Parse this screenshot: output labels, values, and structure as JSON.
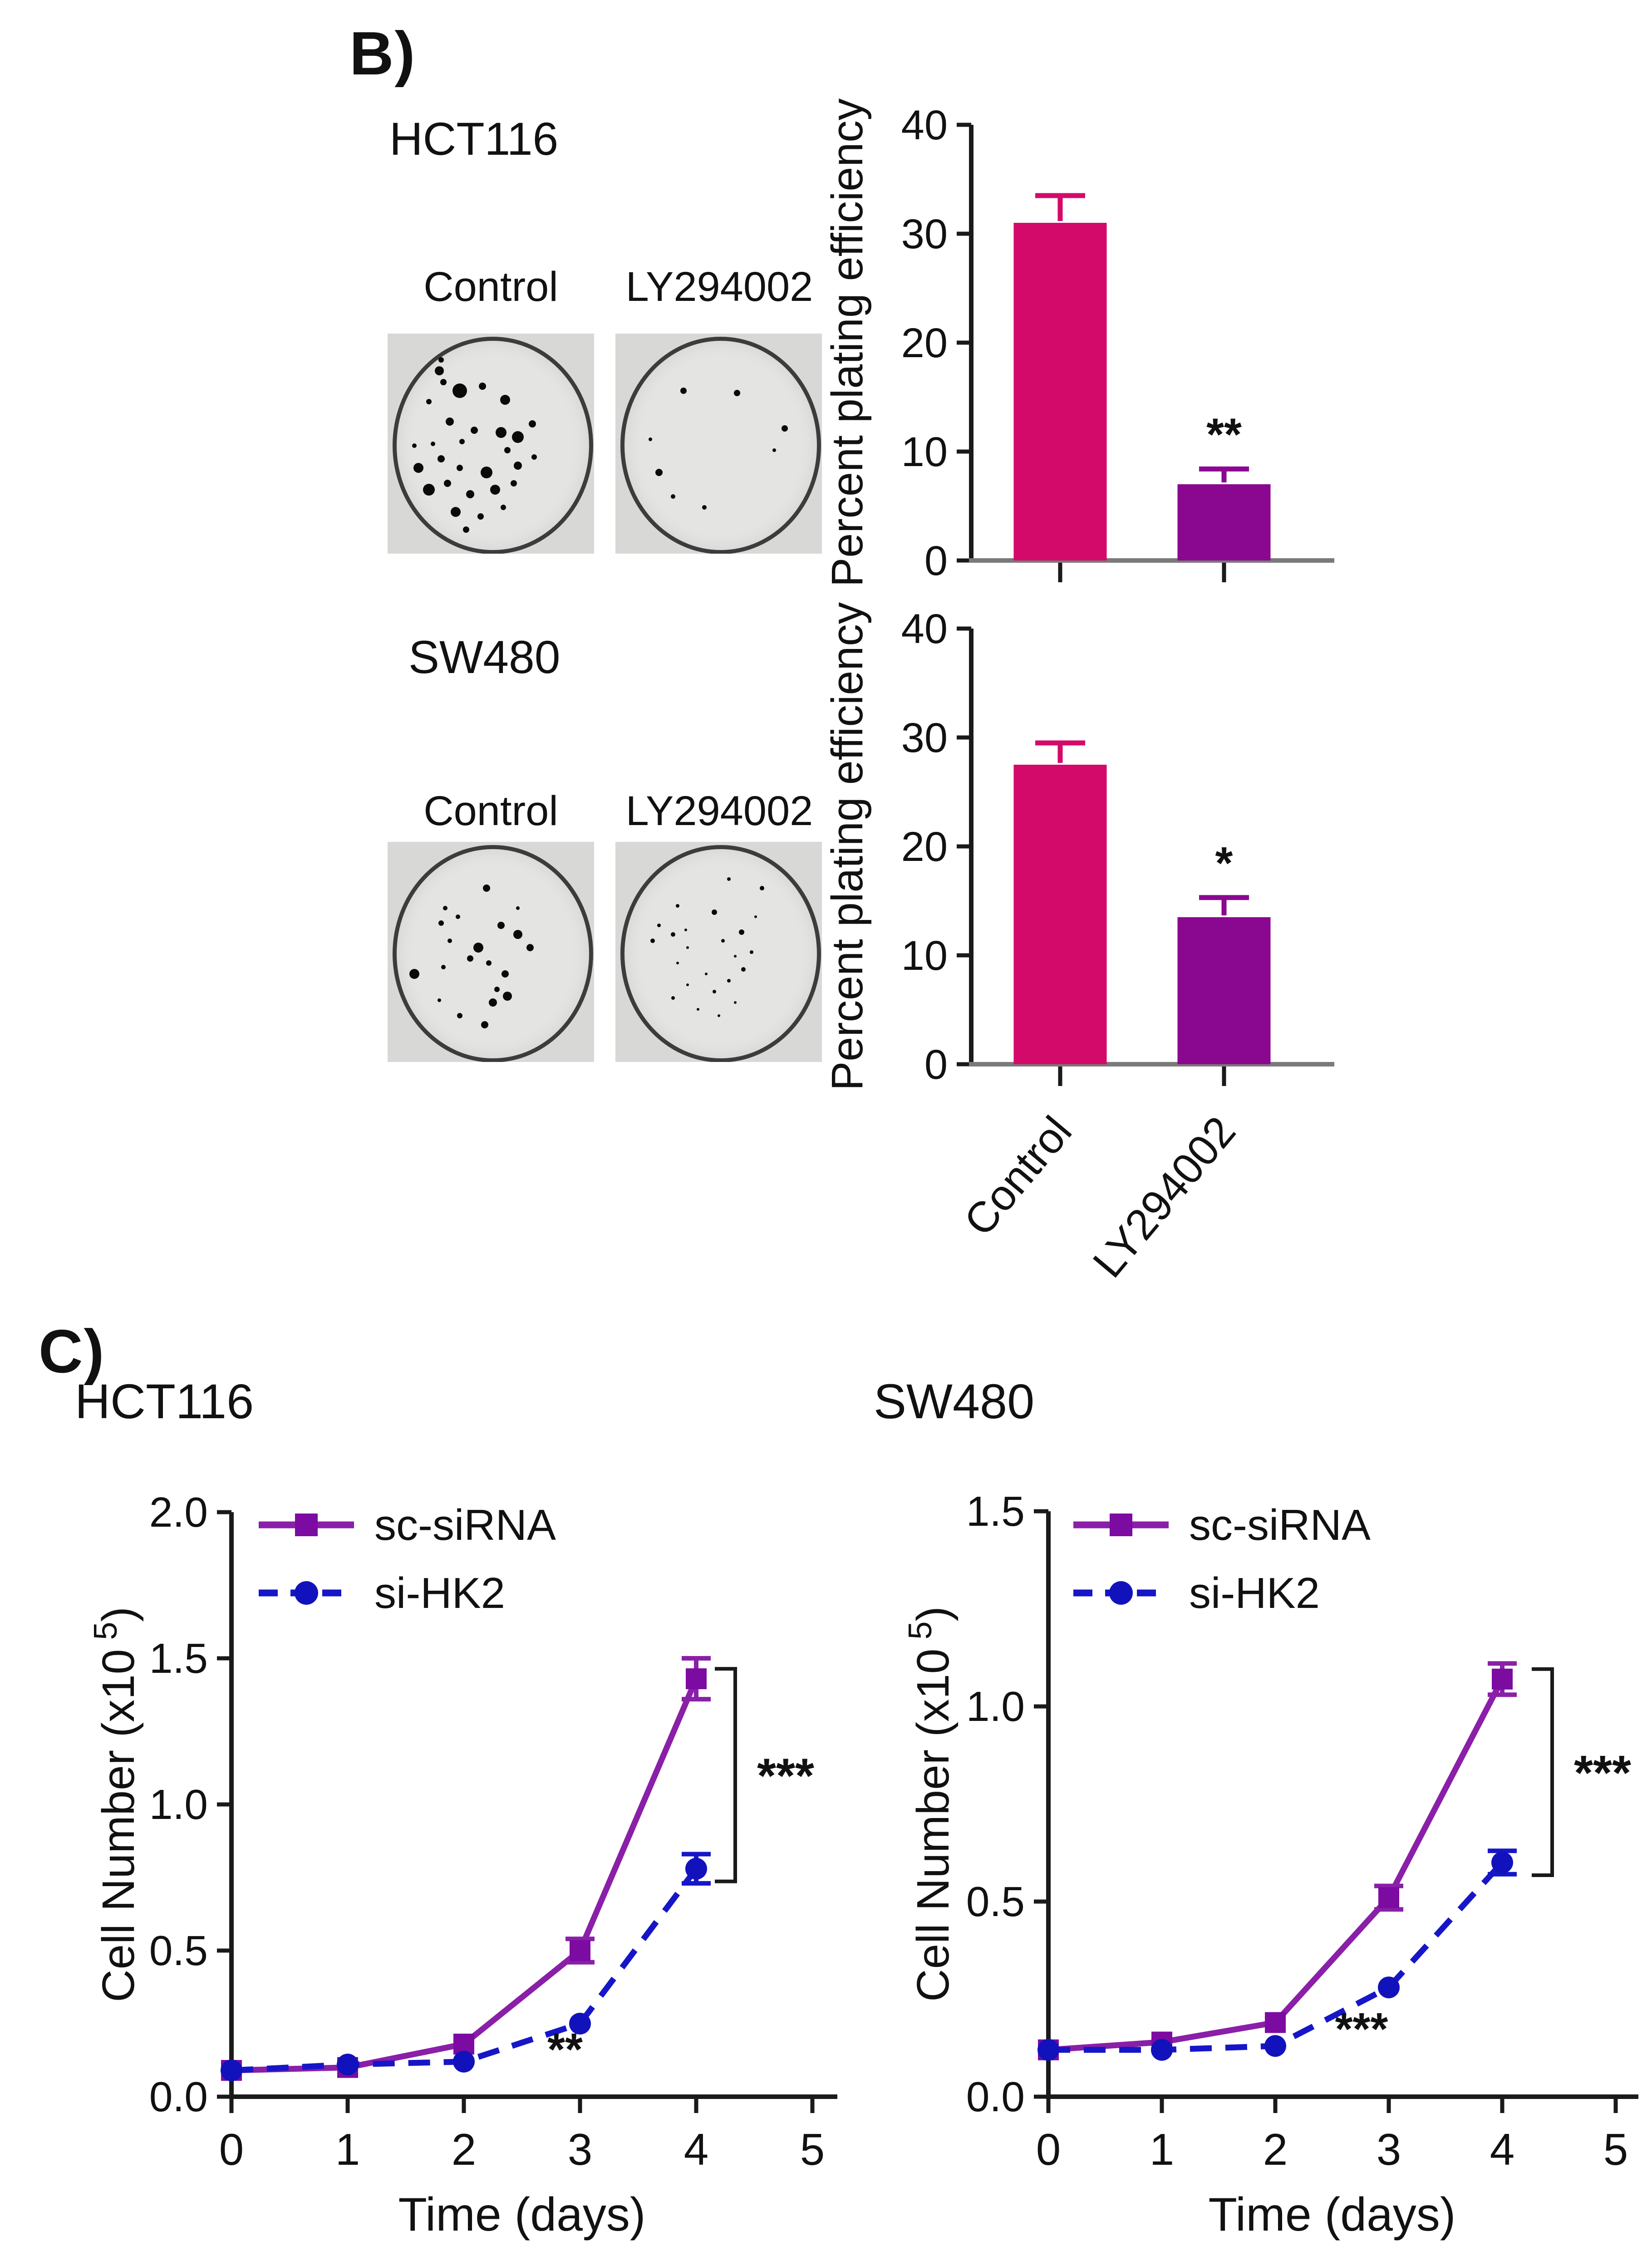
{
  "panel_b": {
    "label": "B)",
    "sections": [
      {
        "cell_line": "HCT116",
        "dish_labels": [
          "Control",
          "LY294002"
        ]
      },
      {
        "cell_line": "SW480",
        "dish_labels": [
          "Control",
          "LY294002"
        ]
      }
    ]
  },
  "panel_c": {
    "label": "C)",
    "titles": [
      "HCT116",
      "SW480"
    ]
  },
  "colonies": {
    "hct116_control": [
      [
        25,
        17,
        10
      ],
      [
        27,
        22,
        7
      ],
      [
        35,
        26,
        16
      ],
      [
        20,
        31,
        6
      ],
      [
        46,
        24,
        8
      ],
      [
        57,
        30,
        11
      ],
      [
        30,
        40,
        9
      ],
      [
        42,
        44,
        8
      ],
      [
        36,
        49,
        6
      ],
      [
        55,
        45,
        12
      ],
      [
        63,
        47,
        13
      ],
      [
        58,
        53,
        7
      ],
      [
        22,
        50,
        5
      ],
      [
        26,
        57,
        8
      ],
      [
        15,
        61,
        11
      ],
      [
        35,
        61,
        7
      ],
      [
        48,
        63,
        13
      ],
      [
        63,
        60,
        9
      ],
      [
        71,
        56,
        6
      ],
      [
        20,
        71,
        13
      ],
      [
        29,
        68,
        8
      ],
      [
        40,
        73,
        9
      ],
      [
        52,
        71,
        11
      ],
      [
        61,
        68,
        7
      ],
      [
        33,
        81,
        11
      ],
      [
        45,
        83,
        7
      ],
      [
        56,
        79,
        6
      ],
      [
        38,
        89,
        7
      ],
      [
        70,
        41,
        8
      ],
      [
        13,
        51,
        5
      ],
      [
        26,
        12,
        6
      ]
    ],
    "hct116_ly294002": [
      [
        33,
        26,
        7
      ],
      [
        59,
        27,
        7
      ],
      [
        82,
        43,
        7
      ],
      [
        17,
        48,
        4
      ],
      [
        21,
        63,
        8
      ],
      [
        28,
        74,
        5
      ],
      [
        43,
        79,
        5
      ],
      [
        77,
        53,
        4
      ]
    ],
    "sw480_control": [
      [
        48,
        21,
        8
      ],
      [
        28,
        30,
        5
      ],
      [
        26,
        37,
        6
      ],
      [
        34,
        34,
        5
      ],
      [
        55,
        38,
        8
      ],
      [
        63,
        42,
        10
      ],
      [
        30,
        45,
        5
      ],
      [
        44,
        48,
        11
      ],
      [
        40,
        53,
        7
      ],
      [
        49,
        55,
        6
      ],
      [
        69,
        48,
        8
      ],
      [
        13,
        60,
        11
      ],
      [
        27,
        57,
        5
      ],
      [
        57,
        60,
        8
      ],
      [
        53,
        67,
        6
      ],
      [
        58,
        70,
        10
      ],
      [
        51,
        73,
        9
      ],
      [
        35,
        79,
        6
      ],
      [
        47,
        83,
        8
      ],
      [
        25,
        72,
        4
      ],
      [
        63,
        30,
        4
      ]
    ],
    "sw480_ly294002": [
      [
        55,
        17,
        4
      ],
      [
        71,
        21,
        5
      ],
      [
        30,
        29,
        4
      ],
      [
        48,
        32,
        6
      ],
      [
        21,
        38,
        4
      ],
      [
        28,
        42,
        5
      ],
      [
        34,
        40,
        3
      ],
      [
        18,
        45,
        5
      ],
      [
        35,
        48,
        3
      ],
      [
        52,
        45,
        4
      ],
      [
        61,
        41,
        6
      ],
      [
        66,
        50,
        4
      ],
      [
        58,
        52,
        3
      ],
      [
        30,
        55,
        3
      ],
      [
        62,
        58,
        5
      ],
      [
        55,
        63,
        4
      ],
      [
        35,
        65,
        3
      ],
      [
        48,
        68,
        4
      ],
      [
        28,
        71,
        4
      ],
      [
        58,
        73,
        3
      ],
      [
        40,
        76,
        3
      ],
      [
        50,
        79,
        3
      ],
      [
        68,
        34,
        3
      ],
      [
        44,
        60,
        3
      ]
    ]
  },
  "chart_data": [
    {
      "id": "plating-hct116",
      "type": "bar",
      "cell_line": "HCT116",
      "categories": [
        "Control",
        "LY294002"
      ],
      "values": [
        31,
        7
      ],
      "errors": [
        2.5,
        1.4
      ],
      "significance": [
        "",
        "**"
      ],
      "ylabel": "Percent plating efficiency",
      "ylim": [
        0,
        40
      ],
      "yticks": [
        0,
        10,
        20,
        30,
        40
      ],
      "bar_colors": [
        "#D40A6B",
        "#8A0890"
      ],
      "show_x_labels": false
    },
    {
      "id": "plating-sw480",
      "type": "bar",
      "cell_line": "SW480",
      "categories": [
        "Control",
        "LY294002"
      ],
      "values": [
        27.5,
        13.5
      ],
      "errors": [
        2.0,
        1.8
      ],
      "significance": [
        "",
        "*"
      ],
      "ylabel": "Percent plating efficiency",
      "ylim": [
        0,
        40
      ],
      "yticks": [
        0,
        10,
        20,
        30,
        40
      ],
      "bar_colors": [
        "#D40A6B",
        "#8A0890"
      ],
      "show_x_labels": true
    },
    {
      "id": "growth-hct116",
      "type": "line",
      "title": "HCT116",
      "xlabel": "Time (days)",
      "ylabel_pre": "Cell Number (x10",
      "ylabel_sup": "5",
      "ylabel_post": ")",
      "x": [
        0,
        1,
        2,
        3,
        4
      ],
      "xticks": [
        0,
        1,
        2,
        3,
        4,
        5
      ],
      "xlim": [
        0,
        5
      ],
      "ylim": [
        0,
        2.0
      ],
      "ytick_values": [
        0,
        0.5,
        1.0,
        1.5,
        2.0
      ],
      "ytick_labels": [
        "0.0",
        "0.5",
        "1.0",
        "1.5",
        "2.0"
      ],
      "series": [
        {
          "name": "sc-siRNA",
          "color": "#8A1FA8",
          "marker_color": "#7C0BA2",
          "marker": "square",
          "dash": "solid",
          "values": [
            0.09,
            0.1,
            0.18,
            0.5,
            1.43
          ],
          "errors": [
            0,
            0,
            0,
            0.04,
            0.07
          ]
        },
        {
          "name": "si-HK2",
          "color": "#1616C8",
          "marker_color": "#1212BC",
          "marker": "circle",
          "dash": "dashed",
          "values": [
            0.09,
            0.11,
            0.12,
            0.25,
            0.78
          ],
          "errors": [
            0,
            0,
            0,
            0,
            0.05
          ]
        }
      ],
      "annotations": {
        "curve_gap_sig": "***",
        "day3_sig": "**"
      },
      "legend_position": "top-left",
      "grid": false
    },
    {
      "id": "growth-sw480",
      "type": "line",
      "title": "SW480",
      "xlabel": "Time (days)",
      "ylabel_pre": "Cell Number (x10",
      "ylabel_sup": "5",
      "ylabel_post": ")",
      "x": [
        0,
        1,
        2,
        3,
        4
      ],
      "xticks": [
        0,
        1,
        2,
        3,
        4,
        5
      ],
      "xlim": [
        0,
        5
      ],
      "ylim": [
        0,
        1.5
      ],
      "ytick_values": [
        0,
        0.5,
        1.0,
        1.5
      ],
      "ytick_labels": [
        "0.0",
        "0.5",
        "1.0",
        "1.5"
      ],
      "series": [
        {
          "name": "sc-siRNA",
          "color": "#8A1FA8",
          "marker_color": "#7C0BA2",
          "marker": "square",
          "dash": "solid",
          "values": [
            0.12,
            0.14,
            0.19,
            0.51,
            1.07
          ],
          "errors": [
            0,
            0,
            0,
            0.03,
            0.04
          ]
        },
        {
          "name": "si-HK2",
          "color": "#1616C8",
          "marker_color": "#1212BC",
          "marker": "circle",
          "dash": "dashed",
          "values": [
            0.12,
            0.12,
            0.13,
            0.28,
            0.6
          ],
          "errors": [
            0,
            0,
            0,
            0,
            0.03
          ]
        }
      ],
      "annotations": {
        "curve_gap_sig": "***",
        "day3_sig": "***"
      },
      "legend_position": "top-left",
      "grid": false
    }
  ]
}
